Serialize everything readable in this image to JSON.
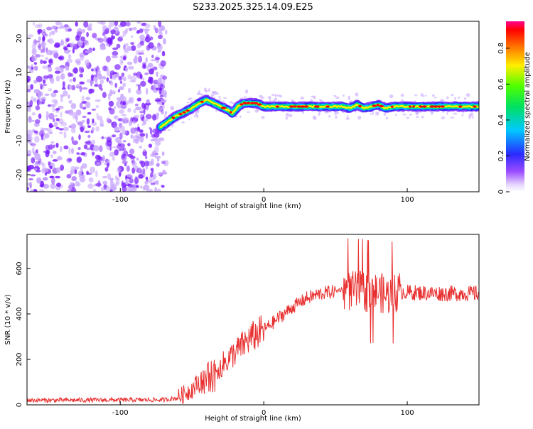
{
  "title": "S233.2025.325.14.09.E25",
  "colors": {
    "signal": "#ff0000",
    "noise": "#7a1cff",
    "noise_light": "#c9a8ff",
    "line": "#e83030"
  },
  "chart_data": [
    {
      "type": "heatmap",
      "xlabel": "Height of straight line (km)",
      "ylabel": "Frequency (Hz)",
      "xlim": [
        -165,
        150
      ],
      "ylim": [
        -25,
        25
      ],
      "xticks": [
        -100,
        0,
        100
      ],
      "yticks": [
        -20,
        -10,
        0,
        10,
        20
      ],
      "colorbar": {
        "label": "Normalized spectral amplitude",
        "range": [
          0,
          0.95
        ],
        "ticks": [
          0,
          0.2,
          0.4,
          0.6,
          0.8
        ]
      },
      "noise_region_x": [
        -165,
        -68
      ],
      "ridge": {
        "x": [
          -72,
          -62,
          -52,
          -45,
          -40,
          -35,
          -30,
          -25,
          -22,
          -18,
          -14,
          -10,
          -5,
          0,
          20,
          40,
          55,
          60,
          65,
          70,
          75,
          80,
          85,
          90,
          100,
          120,
          150
        ],
        "y": [
          -6,
          -3,
          -1,
          1,
          2,
          1,
          0,
          -1,
          -2,
          0,
          1,
          1,
          1,
          0,
          0,
          0,
          0,
          -0.5,
          0.5,
          -0.5,
          0,
          0.5,
          -0.5,
          0,
          0,
          0,
          0
        ]
      }
    },
    {
      "type": "line",
      "xlabel": "Height of straight line (km)",
      "ylabel": "SNR (10 * v/v)",
      "xlim": [
        -165,
        150
      ],
      "ylim": [
        0,
        750
      ],
      "xticks": [
        -100,
        0,
        100
      ],
      "yticks": [
        0,
        200,
        400,
        600
      ],
      "series": [
        {
          "name": "SNR",
          "x": [
            -165,
            -70,
            -60,
            -55,
            -50,
            -45,
            -40,
            -35,
            -30,
            -25,
            -20,
            -15,
            -10,
            -5,
            0,
            10,
            20,
            30,
            40,
            50,
            55,
            60,
            65,
            70,
            75,
            80,
            85,
            90,
            95,
            100,
            120,
            150
          ],
          "values": [
            20,
            22,
            30,
            50,
            70,
            100,
            130,
            150,
            170,
            200,
            230,
            260,
            290,
            310,
            330,
            380,
            430,
            470,
            490,
            500,
            510,
            500,
            500,
            500,
            490,
            500,
            480,
            490,
            500,
            495,
            490,
            490
          ]
        }
      ]
    }
  ]
}
